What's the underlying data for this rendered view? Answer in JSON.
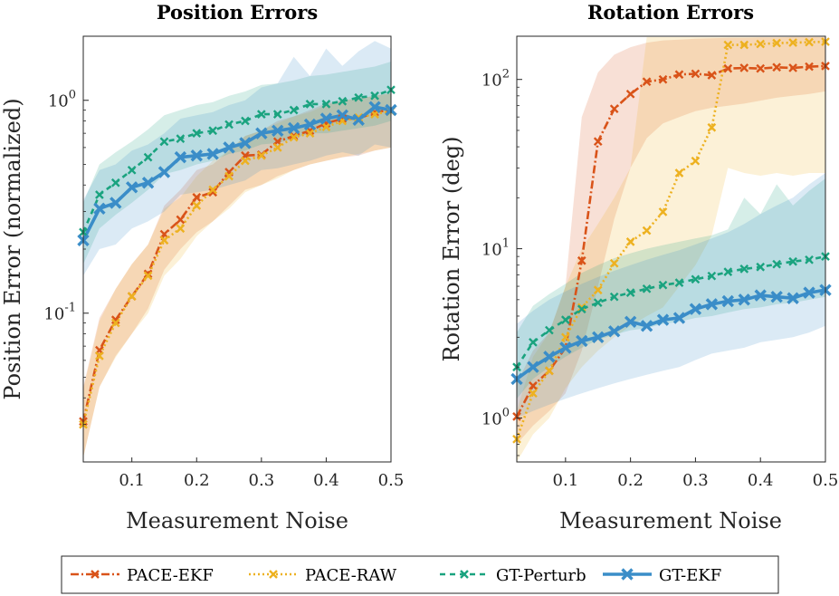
{
  "chart_data": [
    {
      "type": "line",
      "title": "Position Errors",
      "xlabel": "Measurement Noise",
      "ylabel": "Position Error (normalized)",
      "yscale": "log",
      "xlim": [
        0.025,
        0.5
      ],
      "ylim": [
        0.02,
        2.0
      ],
      "xticks": [
        0.1,
        0.2,
        0.3,
        0.4,
        0.5
      ],
      "xtick_labels": [
        "0.1",
        "0.2",
        "0.3",
        "0.4",
        "0.5"
      ],
      "yticks": [
        0.1,
        1.0
      ],
      "ytick_labels": [
        "10^-1",
        "10^0"
      ],
      "x": [
        0.025,
        0.05,
        0.075,
        0.1,
        0.125,
        0.15,
        0.175,
        0.2,
        0.225,
        0.25,
        0.275,
        0.3,
        0.325,
        0.35,
        0.375,
        0.4,
        0.425,
        0.45,
        0.475,
        0.5
      ],
      "series": [
        {
          "name": "PACE-EKF",
          "values": [
            0.031,
            0.067,
            0.093,
            0.12,
            0.153,
            0.235,
            0.275,
            0.35,
            0.37,
            0.46,
            0.55,
            0.555,
            0.64,
            0.68,
            0.72,
            0.78,
            0.82,
            0.82,
            0.88,
            0.9
          ],
          "lower": [
            0.021,
            0.045,
            0.063,
            0.08,
            0.105,
            0.16,
            0.2,
            0.24,
            0.27,
            0.32,
            0.38,
            0.4,
            0.44,
            0.47,
            0.5,
            0.52,
            0.54,
            0.55,
            0.58,
            0.6
          ],
          "upper": [
            0.045,
            0.095,
            0.13,
            0.17,
            0.21,
            0.32,
            0.38,
            0.47,
            0.5,
            0.58,
            0.68,
            0.72,
            0.8,
            0.84,
            0.9,
            0.97,
            1.0,
            1.02,
            1.05,
            1.08
          ]
        },
        {
          "name": "PACE-RAW",
          "values": [
            0.03,
            0.063,
            0.09,
            0.12,
            0.15,
            0.22,
            0.25,
            0.32,
            0.38,
            0.44,
            0.52,
            0.55,
            0.6,
            0.67,
            0.7,
            0.75,
            0.8,
            0.83,
            0.86,
            0.89
          ],
          "lower": [
            0.021,
            0.045,
            0.062,
            0.08,
            0.1,
            0.15,
            0.18,
            0.23,
            0.27,
            0.31,
            0.37,
            0.4,
            0.43,
            0.47,
            0.5,
            0.52,
            0.54,
            0.56,
            0.58,
            0.6
          ],
          "upper": [
            0.044,
            0.092,
            0.13,
            0.17,
            0.21,
            0.31,
            0.35,
            0.44,
            0.52,
            0.58,
            0.68,
            0.72,
            0.78,
            0.84,
            0.88,
            0.95,
            1.0,
            1.02,
            1.05,
            1.08
          ]
        },
        {
          "name": "GT-Perturb",
          "values": [
            0.24,
            0.36,
            0.41,
            0.47,
            0.54,
            0.64,
            0.66,
            0.7,
            0.72,
            0.77,
            0.8,
            0.86,
            0.86,
            0.9,
            0.96,
            0.96,
            0.99,
            1.03,
            1.05,
            1.12
          ],
          "lower": [
            0.17,
            0.25,
            0.29,
            0.33,
            0.38,
            0.45,
            0.47,
            0.5,
            0.52,
            0.56,
            0.58,
            0.62,
            0.63,
            0.66,
            0.7,
            0.7,
            0.72,
            0.74,
            0.76,
            0.8
          ],
          "upper": [
            0.33,
            0.5,
            0.57,
            0.64,
            0.73,
            0.85,
            0.9,
            0.95,
            0.98,
            1.05,
            1.1,
            1.18,
            1.2,
            1.24,
            1.3,
            1.32,
            1.36,
            1.4,
            1.44,
            1.52
          ]
        },
        {
          "name": "GT-EKF",
          "values": [
            0.22,
            0.31,
            0.33,
            0.39,
            0.41,
            0.46,
            0.54,
            0.55,
            0.56,
            0.6,
            0.63,
            0.7,
            0.72,
            0.74,
            0.77,
            0.82,
            0.85,
            0.81,
            0.93,
            0.9
          ],
          "lower": [
            0.15,
            0.2,
            0.21,
            0.25,
            0.27,
            0.3,
            0.36,
            0.37,
            0.38,
            0.4,
            0.42,
            0.47,
            0.48,
            0.5,
            0.52,
            0.55,
            0.57,
            0.55,
            0.62,
            0.6
          ],
          "upper": [
            0.34,
            0.47,
            0.5,
            0.58,
            0.62,
            0.7,
            0.82,
            0.85,
            0.88,
            0.95,
            1.0,
            1.15,
            1.2,
            1.6,
            1.3,
            1.75,
            1.45,
            1.7,
            1.9,
            1.75
          ]
        }
      ]
    },
    {
      "type": "line",
      "title": "Rotation Errors",
      "xlabel": "Measurement Noise",
      "ylabel": "Rotation Error (deg)",
      "yscale": "log",
      "xlim": [
        0.025,
        0.5
      ],
      "ylim": [
        0.55,
        180
      ],
      "xticks": [
        0.1,
        0.2,
        0.3,
        0.4,
        0.5
      ],
      "xtick_labels": [
        "0.1",
        "0.2",
        "0.3",
        "0.4",
        "0.5"
      ],
      "yticks": [
        1,
        10,
        100
      ],
      "ytick_labels": [
        "10^0",
        "10^1",
        "10^2"
      ],
      "x": [
        0.025,
        0.05,
        0.075,
        0.1,
        0.125,
        0.15,
        0.175,
        0.2,
        0.225,
        0.25,
        0.275,
        0.3,
        0.325,
        0.35,
        0.375,
        0.4,
        0.425,
        0.45,
        0.475,
        0.5
      ],
      "series": [
        {
          "name": "PACE-EKF",
          "values": [
            1.02,
            1.55,
            1.9,
            2.6,
            8.5,
            43,
            67,
            82,
            97,
            100,
            107,
            108,
            106,
            116,
            117,
            116,
            118,
            117,
            119,
            120
          ],
          "lower": [
            0.7,
            0.9,
            1.1,
            1.4,
            2.5,
            6,
            15,
            30,
            45,
            55,
            60,
            65,
            68,
            70,
            72,
            75,
            78,
            80,
            82,
            85
          ],
          "upper": [
            1.6,
            2.5,
            3.2,
            6,
            60,
            110,
            140,
            155,
            165,
            170,
            172,
            174,
            175,
            176,
            176,
            177,
            177,
            178,
            178,
            178
          ]
        },
        {
          "name": "PACE-RAW",
          "values": [
            0.75,
            1.4,
            1.9,
            3.0,
            4.5,
            5.7,
            8.2,
            11,
            12.8,
            16.5,
            28,
            33,
            52,
            160,
            160,
            162,
            164,
            165,
            166,
            167
          ],
          "lower": [
            0.55,
            0.8,
            1.0,
            1.5,
            2.0,
            2.5,
            3.0,
            3.5,
            4.0,
            4.5,
            6,
            8,
            12,
            30,
            28,
            27,
            28,
            27,
            28,
            28
          ],
          "upper": [
            1.1,
            2.3,
            3.2,
            6,
            10,
            14,
            20,
            30,
            178,
            178,
            178,
            178,
            178,
            178,
            178,
            178,
            178,
            178,
            178,
            178
          ]
        },
        {
          "name": "GT-Perturb",
          "values": [
            2.0,
            2.8,
            3.3,
            3.8,
            4.4,
            4.8,
            5.2,
            5.5,
            5.8,
            6.1,
            6.3,
            6.6,
            6.9,
            7.3,
            7.6,
            7.8,
            8.1,
            8.4,
            8.6,
            9.0
          ],
          "lower": [
            1.3,
            1.7,
            2.0,
            2.3,
            2.6,
            2.9,
            3.1,
            3.3,
            3.4,
            3.6,
            3.7,
            3.9,
            4.0,
            4.2,
            4.4,
            4.5,
            4.7,
            4.8,
            5.0,
            5.2
          ],
          "upper": [
            3.2,
            4.6,
            5.4,
            6.2,
            7.2,
            8.0,
            8.8,
            9.4,
            10,
            10.5,
            11,
            11.5,
            12,
            13,
            20,
            16,
            24,
            18,
            22,
            26
          ]
        },
        {
          "name": "GT-EKF",
          "values": [
            1.7,
            2.0,
            2.3,
            2.6,
            2.85,
            3.0,
            3.25,
            3.7,
            3.5,
            3.8,
            3.9,
            4.4,
            4.7,
            4.9,
            5.0,
            5.3,
            5.2,
            5.1,
            5.5,
            5.7
          ],
          "lower": [
            1.0,
            1.1,
            1.2,
            1.3,
            1.4,
            1.5,
            1.6,
            1.7,
            1.8,
            1.9,
            2.0,
            2.2,
            2.4,
            2.5,
            2.6,
            2.8,
            2.9,
            3.0,
            3.2,
            3.5
          ],
          "upper": [
            3.6,
            4.3,
            5.0,
            5.6,
            6.2,
            6.8,
            7.4,
            8.0,
            8.6,
            9.2,
            9.8,
            10.6,
            11.5,
            12.5,
            14,
            16,
            18,
            20,
            24,
            28
          ]
        }
      ]
    }
  ],
  "legend": {
    "placement": "bottom",
    "entries": [
      {
        "label": "PACE-EKF",
        "color": "#D95319",
        "dash": "dashdot",
        "marker": "x"
      },
      {
        "label": "PACE-RAW",
        "color": "#EDB120",
        "dash": "dotted",
        "marker": "x"
      },
      {
        "label": "GT-Perturb",
        "color": "#1AA37F",
        "dash": "dashed",
        "marker": "x"
      },
      {
        "label": "GT-EKF",
        "color": "#3A8DC8",
        "dash": "solid",
        "marker": "x"
      }
    ]
  },
  "colors": {
    "PACE-EKF": "#D95319",
    "PACE-RAW": "#EDB120",
    "GT-Perturb": "#1AA37F",
    "GT-EKF": "#3A8DC8"
  }
}
